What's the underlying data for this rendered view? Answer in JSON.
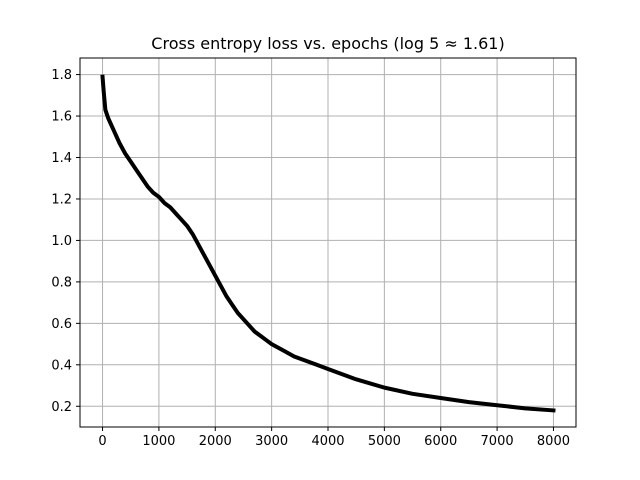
{
  "chart_data": {
    "type": "line",
    "title": "Cross entropy loss vs. epochs (log 5 ≈ 1.61)",
    "xlabel": "",
    "ylabel": "",
    "xlim": [
      -400,
      8400
    ],
    "ylim": [
      0.1,
      1.88
    ],
    "xticks": [
      0,
      1000,
      2000,
      3000,
      4000,
      5000,
      6000,
      7000,
      8000
    ],
    "xtick_labels": [
      "0",
      "1000",
      "2000",
      "3000",
      "4000",
      "5000",
      "6000",
      "7000",
      "8000"
    ],
    "yticks": [
      0.2,
      0.4,
      0.6,
      0.8,
      1.0,
      1.2,
      1.4,
      1.6,
      1.8
    ],
    "ytick_labels": [
      "0.2",
      "0.4",
      "0.6",
      "0.8",
      "1.0",
      "1.2",
      "1.4",
      "1.6",
      "1.8"
    ],
    "grid": true,
    "series": [
      {
        "color": "#000000",
        "x": [
          0,
          20,
          50,
          100,
          200,
          300,
          400,
          500,
          600,
          700,
          800,
          900,
          1000,
          1100,
          1200,
          1300,
          1400,
          1500,
          1600,
          1700,
          1800,
          1900,
          2000,
          2100,
          2200,
          2300,
          2400,
          2500,
          2600,
          2700,
          2800,
          2900,
          3000,
          3200,
          3400,
          3600,
          3800,
          4000,
          4500,
          5000,
          5500,
          6000,
          6500,
          7000,
          7500,
          8000
        ],
        "y": [
          1.79,
          1.72,
          1.63,
          1.59,
          1.53,
          1.47,
          1.42,
          1.38,
          1.34,
          1.3,
          1.26,
          1.23,
          1.21,
          1.18,
          1.16,
          1.13,
          1.1,
          1.07,
          1.03,
          0.98,
          0.93,
          0.88,
          0.83,
          0.78,
          0.73,
          0.69,
          0.65,
          0.62,
          0.59,
          0.56,
          0.54,
          0.52,
          0.5,
          0.47,
          0.44,
          0.42,
          0.4,
          0.38,
          0.33,
          0.29,
          0.26,
          0.24,
          0.22,
          0.205,
          0.19,
          0.18
        ]
      }
    ]
  }
}
